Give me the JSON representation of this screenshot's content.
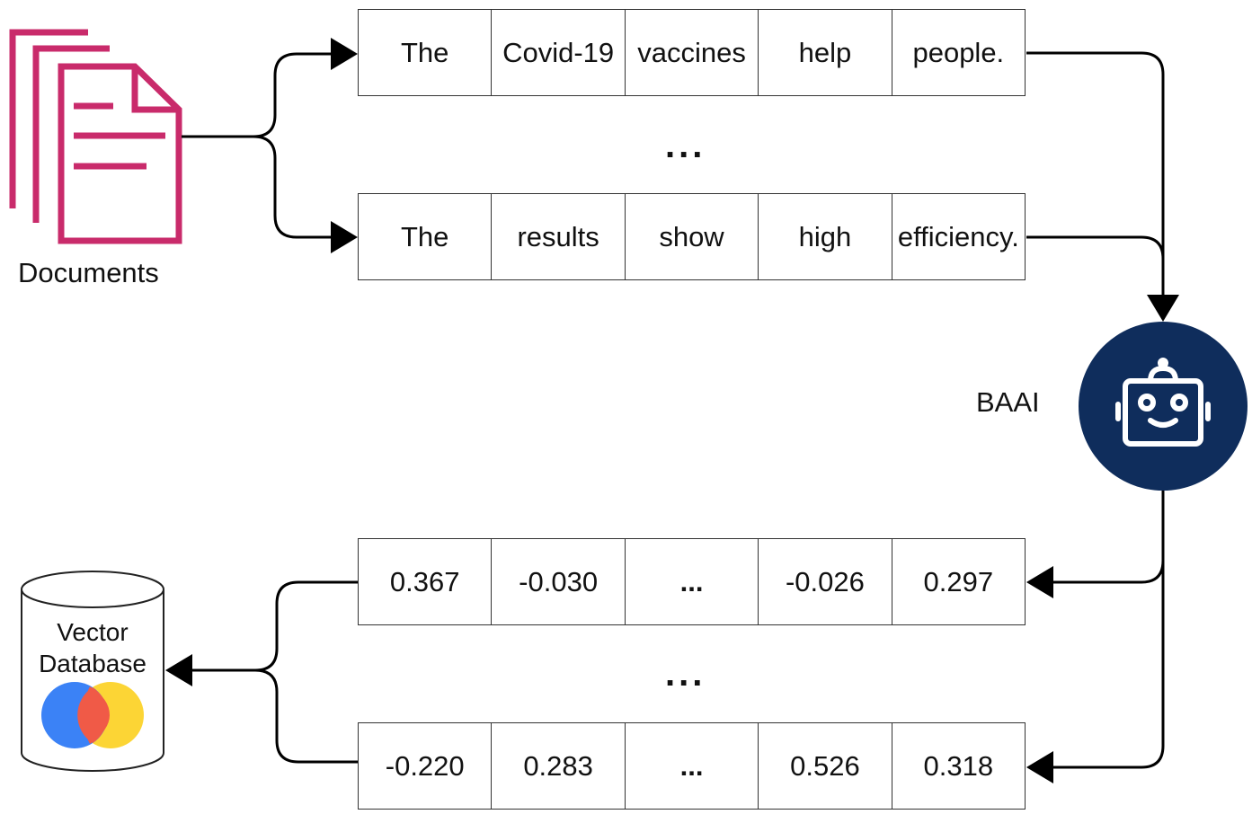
{
  "documents_label": "Documents",
  "model_label": "BAAI",
  "database_label_line1": "Vector",
  "database_label_line2": "Database",
  "ellipsis": "...",
  "token_rows": [
    [
      "The",
      "Covid-19",
      "vaccines",
      "help",
      "people."
    ],
    [
      "The",
      "results",
      "show",
      "high",
      "efficiency."
    ]
  ],
  "vector_rows": [
    [
      "0.367",
      "-0.030",
      "...",
      "-0.026",
      "0.297"
    ],
    [
      "-0.220",
      "0.283",
      "...",
      "0.526",
      "0.318"
    ]
  ],
  "colors": {
    "documents_icon": "#c92b6b",
    "model_circle": "#0f2d5c",
    "db_blue": "#3b82f6",
    "db_red": "#f05a47",
    "db_yellow": "#fcd535",
    "arrow": "#000000"
  },
  "icons": {
    "documents": "documents-icon",
    "model": "robot-icon",
    "database": "database-icon"
  }
}
